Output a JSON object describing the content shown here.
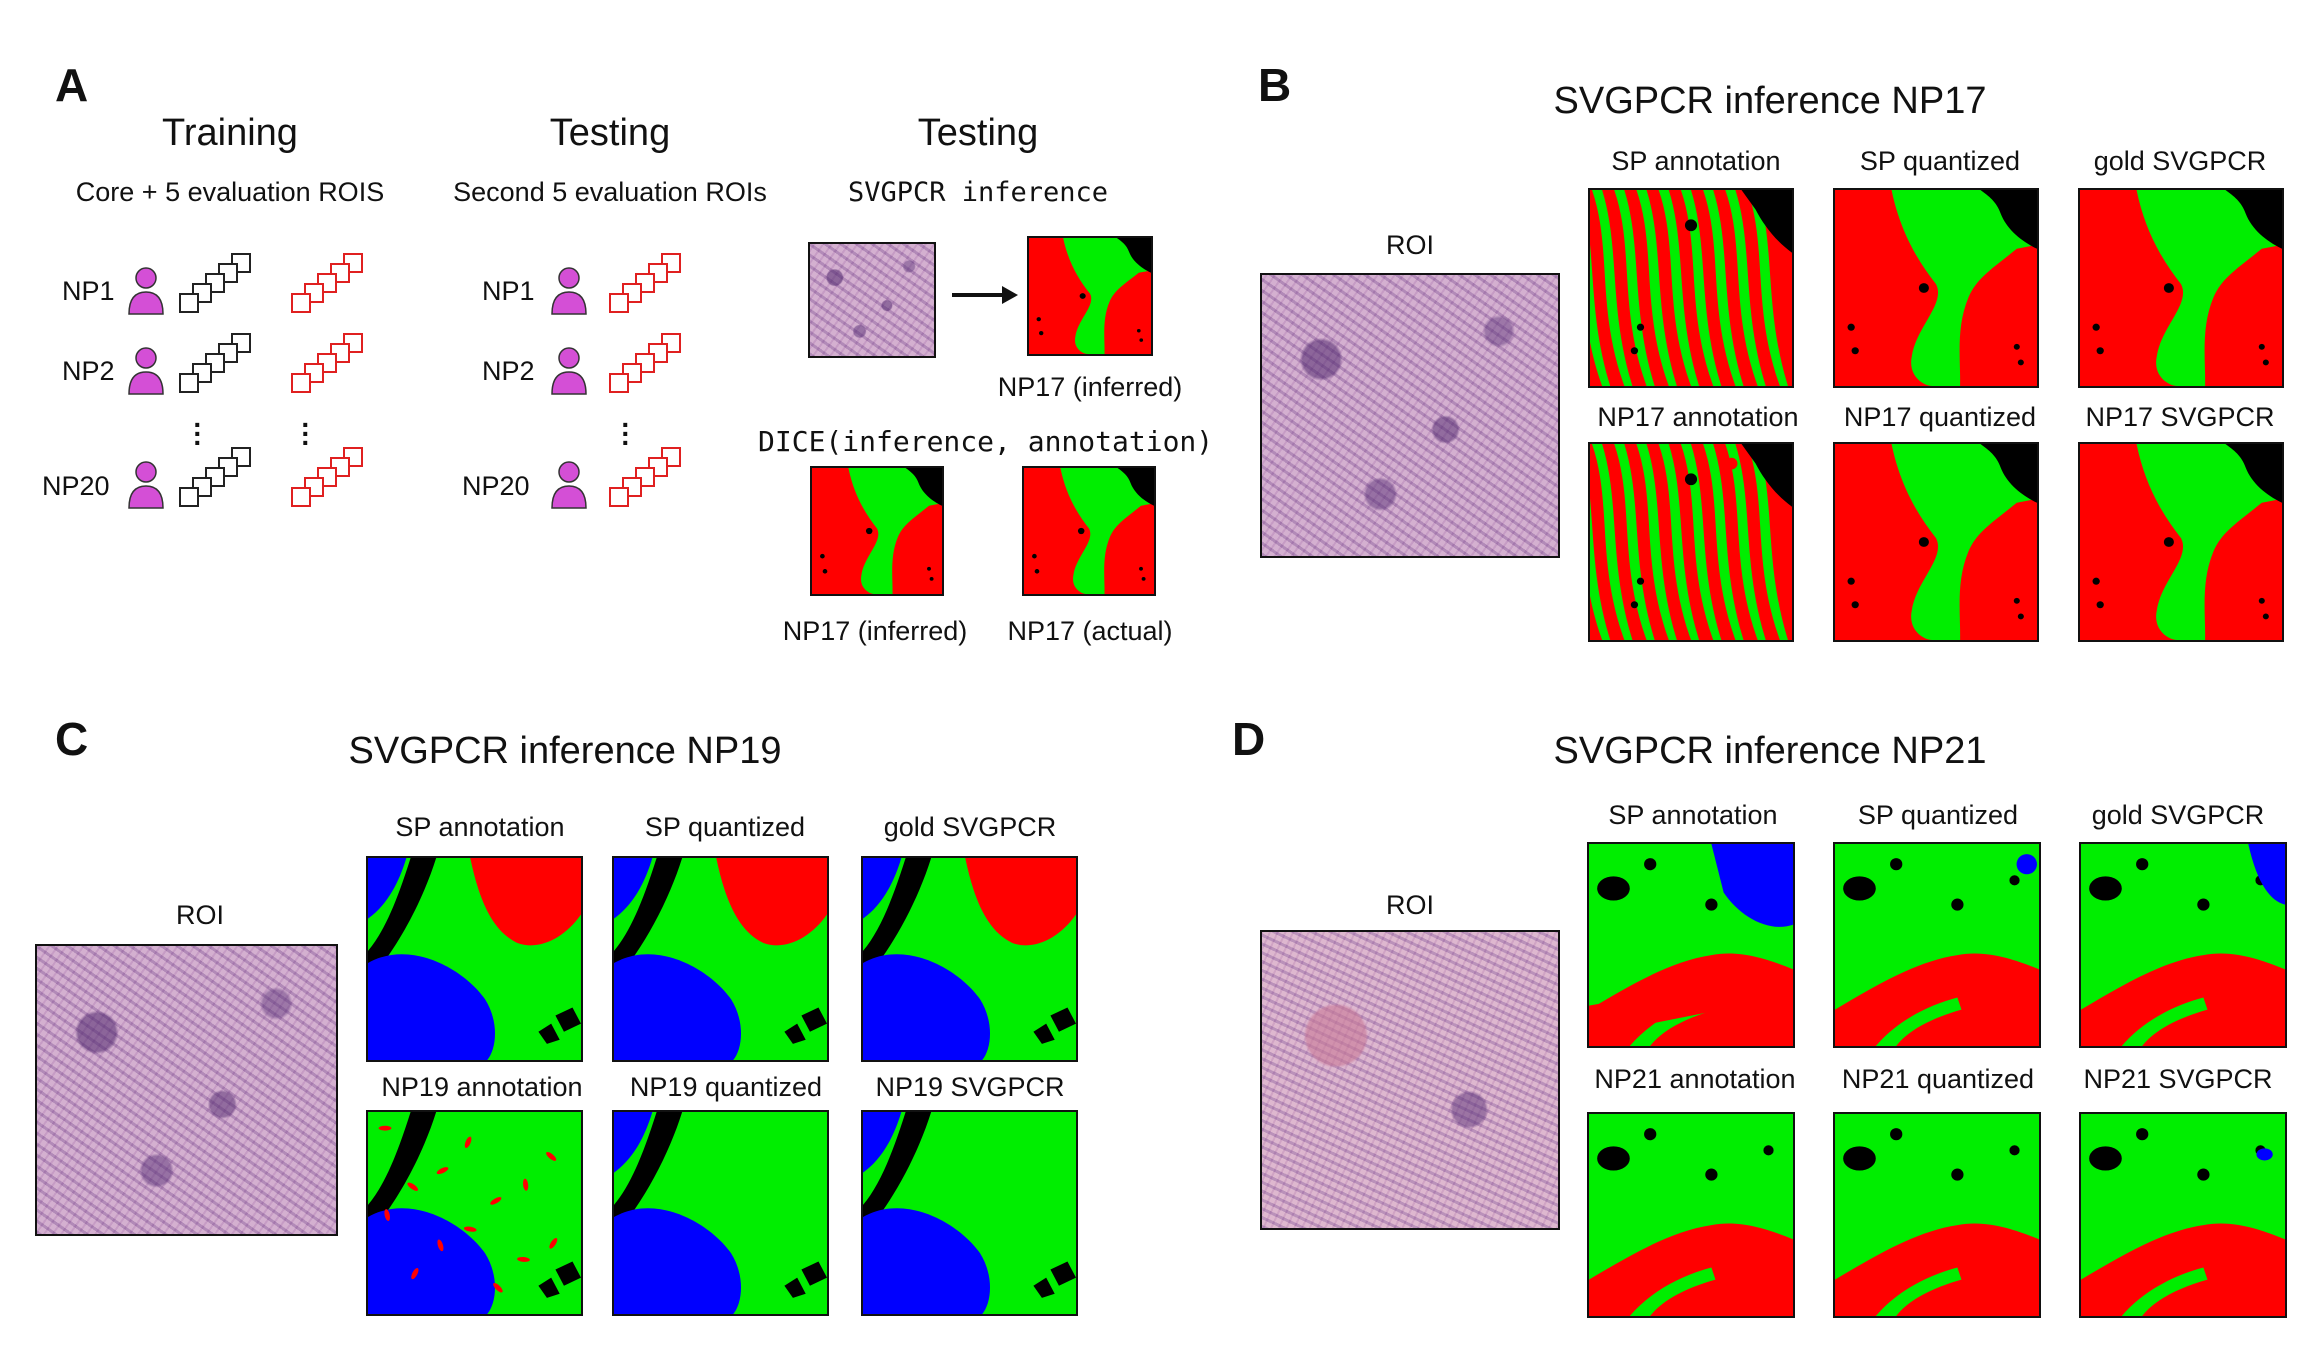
{
  "panelA": {
    "label": "A",
    "col1": {
      "title": "Training",
      "subtitle": "Core + 5 evaluation ROIS"
    },
    "col2": {
      "title": "Testing",
      "subtitle": "Second 5 evaluation ROIs"
    },
    "col3": {
      "title": "Testing",
      "subtitle": "SVGPCR inference"
    },
    "rows": [
      "NP1",
      "NP2",
      "NP20"
    ],
    "inferred_caption": "NP17 (inferred)",
    "dice_label": "DICE(inference, annotation)",
    "dice_left_caption": "NP17 (inferred)",
    "dice_right_caption": "NP17 (actual)"
  },
  "panelB": {
    "label": "B",
    "title": "SVGPCR inference NP17",
    "roi_label": "ROI",
    "top": [
      "SP annotation",
      "SP quantized",
      "gold SVGPCR"
    ],
    "bottom": [
      "NP17 annotation",
      "NP17 quantized",
      "NP17 SVGPCR"
    ]
  },
  "panelC": {
    "label": "C",
    "title": "SVGPCR inference NP19",
    "roi_label": "ROI",
    "top": [
      "SP annotation",
      "SP quantized",
      "gold SVGPCR"
    ],
    "bottom": [
      "NP19 annotation",
      "NP19 quantized",
      "NP19 SVGPCR"
    ]
  },
  "panelD": {
    "label": "D",
    "title": "SVGPCR inference NP21",
    "roi_label": "ROI",
    "top": [
      "SP annotation",
      "SP quantized",
      "gold SVGPCR"
    ],
    "bottom": [
      "NP21 annotation",
      "NP21 quantized",
      "NP21 SVGPCR"
    ]
  },
  "colors": {
    "tumor": "#ff0000",
    "stroma": "#00ee00",
    "lymph": "#0000ff",
    "background": "#000000",
    "annotator": "#d44fd6",
    "test_roi": "#e02020"
  }
}
